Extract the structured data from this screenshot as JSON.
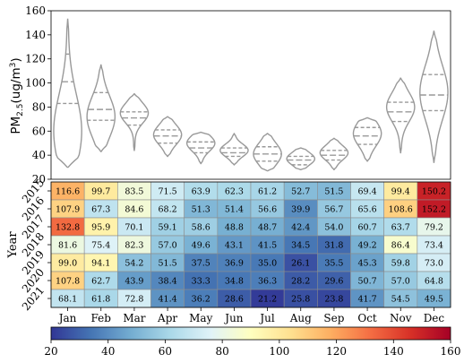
{
  "chart_data": [
    {
      "type": "violin",
      "ylabel": "PM",
      "ylabel_sub": "2.5",
      "ylabel_unit": "(ug/m",
      "ylabel_sup": "3",
      "ylabel_close": ")",
      "ylim": [
        20,
        160
      ],
      "yticks": [
        20,
        40,
        60,
        80,
        100,
        120,
        140,
        160
      ],
      "color": "#999999",
      "categories": [
        "Jan",
        "Feb",
        "Mar",
        "Apr",
        "May",
        "Jun",
        "Jul",
        "Aug",
        "Sep",
        "Oct",
        "Nov",
        "Dec"
      ],
      "violins": [
        {
          "min": 30,
          "max": 153,
          "q1": 83,
          "median": 101,
          "q3": 124,
          "peak": 60
        },
        {
          "min": 43,
          "max": 115,
          "q1": 69,
          "median": 78,
          "q3": 92,
          "peak": 72
        },
        {
          "min": 44,
          "max": 91,
          "q1": 65,
          "median": 71,
          "q3": 76,
          "peak": 75
        },
        {
          "min": 39,
          "max": 72,
          "q1": 50,
          "median": 56,
          "q3": 61,
          "peak": 57
        },
        {
          "min": 33,
          "max": 59,
          "q1": 42,
          "median": 46,
          "q3": 51,
          "peak": 50
        },
        {
          "min": 32,
          "max": 58,
          "q1": 39,
          "median": 42,
          "q3": 46,
          "peak": 44
        },
        {
          "min": 27,
          "max": 58,
          "q1": 35,
          "median": 41,
          "q3": 47,
          "peak": 41
        },
        {
          "min": 28,
          "max": 46,
          "q1": 32,
          "median": 36,
          "q3": 39,
          "peak": 37
        },
        {
          "min": 28,
          "max": 54,
          "q1": 36,
          "median": 40,
          "q3": 44,
          "peak": 42
        },
        {
          "min": 35,
          "max": 71,
          "q1": 49,
          "median": 56,
          "q3": 63,
          "peak": 58
        },
        {
          "min": 42,
          "max": 104,
          "q1": 68,
          "median": 76,
          "q3": 84,
          "peak": 80
        },
        {
          "min": 34,
          "max": 143,
          "q1": 77,
          "median": 90,
          "q3": 107,
          "peak": 92
        }
      ]
    },
    {
      "type": "heatmap",
      "ylabel": "Year",
      "years": [
        "2015",
        "2016",
        "2017",
        "2018",
        "2019",
        "2020",
        "2021"
      ],
      "months": [
        "Jan",
        "Feb",
        "Mar",
        "Apr",
        "May",
        "Jun",
        "Jul",
        "Aug",
        "Sep",
        "Oct",
        "Nov",
        "Dec"
      ],
      "values": [
        [
          116.6,
          99.7,
          83.5,
          71.5,
          63.9,
          62.3,
          61.2,
          52.7,
          51.5,
          69.4,
          99.4,
          150.2
        ],
        [
          107.9,
          67.3,
          84.6,
          68.2,
          51.3,
          51.4,
          56.6,
          39.9,
          56.7,
          65.6,
          108.6,
          152.2
        ],
        [
          132.8,
          95.9,
          70.1,
          59.1,
          58.6,
          48.8,
          48.7,
          42.4,
          54.0,
          60.7,
          63.7,
          79.2
        ],
        [
          81.6,
          75.4,
          82.3,
          57.0,
          49.6,
          43.1,
          41.5,
          34.5,
          31.8,
          49.2,
          86.4,
          73.4
        ],
        [
          99.0,
          94.1,
          54.2,
          51.5,
          37.5,
          36.9,
          35.0,
          26.1,
          35.5,
          45.3,
          59.8,
          73.0
        ],
        [
          107.8,
          62.7,
          43.9,
          38.4,
          33.3,
          34.8,
          36.3,
          28.2,
          29.6,
          50.7,
          57.0,
          64.8
        ],
        [
          68.1,
          61.8,
          72.8,
          41.4,
          36.2,
          28.6,
          21.2,
          25.8,
          23.8,
          41.7,
          54.5,
          49.5
        ]
      ],
      "colormap": "RdYlBu_r",
      "colorbar": {
        "min": 20,
        "max": 160,
        "ticks": [
          20,
          40,
          60,
          80,
          100,
          120,
          140,
          160
        ]
      }
    }
  ]
}
